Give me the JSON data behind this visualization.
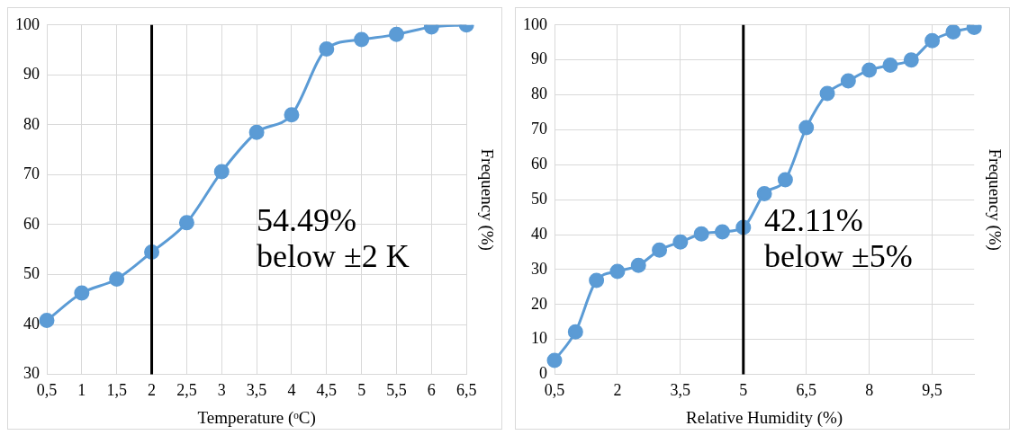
{
  "chart_data": [
    {
      "type": "line",
      "xlabel": "Temperature (ᵒC)",
      "ylabel": "Frequency (%)",
      "categories": [
        "0,5",
        "1",
        "1,5",
        "2",
        "2,5",
        "3",
        "3,5",
        "4",
        "4,5",
        "5",
        "5,5",
        "6",
        "6,5"
      ],
      "series": [
        {
          "color": "#5b9bd5",
          "values": [
            40.8,
            46.3,
            49.1,
            54.5,
            60.4,
            70.6,
            78.5,
            82.0,
            95.2,
            97.1,
            98.1,
            99.6,
            100
          ]
        }
      ],
      "ylim": [
        30,
        100
      ],
      "yticks": [
        30,
        40,
        50,
        60,
        70,
        80,
        90,
        100
      ],
      "grid": true,
      "legend": false,
      "marker": "circle",
      "ref_lines": [
        {
          "axis": "x",
          "value": "2",
          "color": "#000000"
        }
      ],
      "annotations": [
        "54.49%",
        "below ±2 K"
      ]
    },
    {
      "type": "line",
      "xlabel": "Relative Humidity (%)",
      "ylabel": "Frequency (%)",
      "categories": [
        "0,5",
        null,
        null,
        "2",
        null,
        null,
        "3,5",
        null,
        null,
        "5",
        null,
        null,
        "6,5",
        null,
        null,
        "8",
        null,
        null,
        "9,5",
        null,
        null
      ],
      "series": [
        {
          "color": "#5b9bd5",
          "values": [
            4.0,
            12.2,
            26.9,
            29.5,
            31.2,
            35.6,
            37.9,
            40.2,
            40.8,
            42.1,
            51.7,
            55.7,
            70.6,
            80.4,
            84.0,
            87.1,
            88.5,
            90.0,
            95.5,
            98.0,
            99.3
          ]
        }
      ],
      "ylim": [
        0,
        100
      ],
      "yticks": [
        0,
        10,
        20,
        30,
        40,
        50,
        60,
        70,
        80,
        90,
        100
      ],
      "grid": true,
      "legend": false,
      "marker": "circle",
      "ref_lines": [
        {
          "axis": "x",
          "value": "5",
          "color": "#000000"
        }
      ],
      "annotations": [
        "42.11%",
        "below ±5%"
      ]
    }
  ]
}
